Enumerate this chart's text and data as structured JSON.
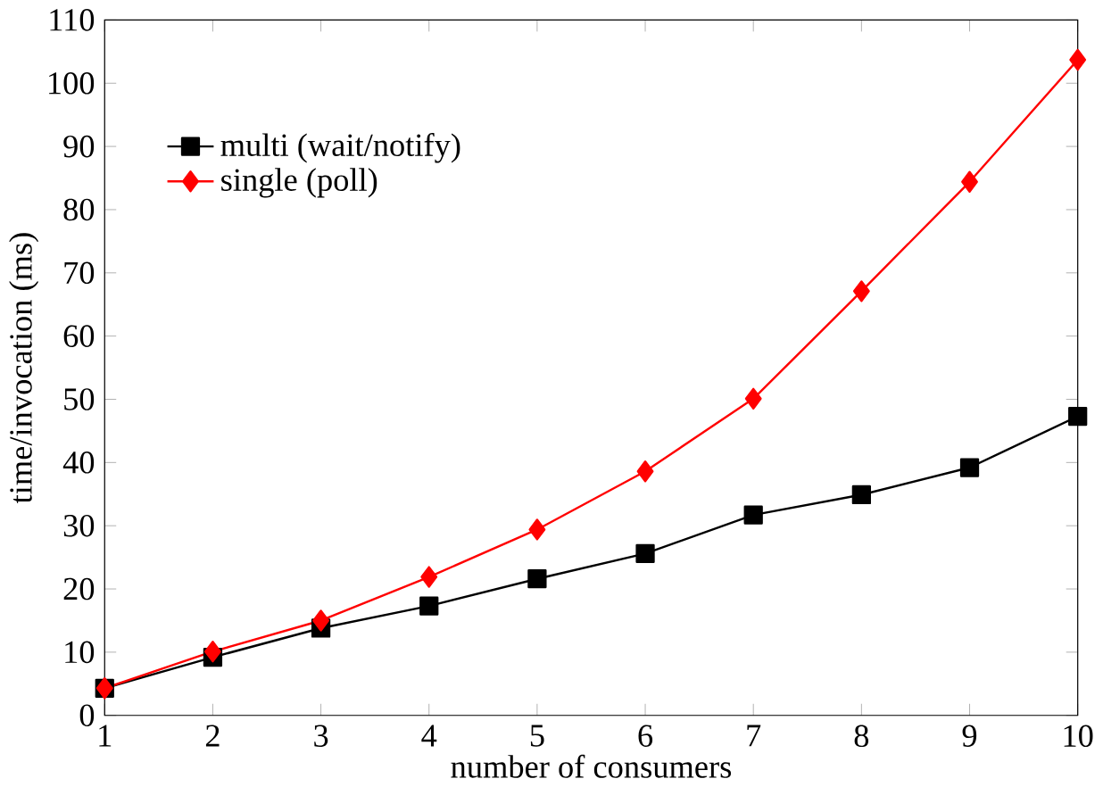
{
  "chart_data": {
    "type": "line",
    "xlabel": "number of consumers",
    "ylabel": "time/invocation (ms)",
    "x": [
      1,
      2,
      3,
      4,
      5,
      6,
      7,
      8,
      9,
      10
    ],
    "series": [
      {
        "name": "multi (wait/notify)",
        "color": "#000000",
        "marker": "square",
        "values": [
          4.3,
          9.2,
          13.8,
          17.3,
          21.6,
          25.6,
          31.7,
          34.9,
          39.2,
          47.3
        ]
      },
      {
        "name": "single (poll)",
        "color": "#ff0000",
        "marker": "diamond",
        "values": [
          4.3,
          10.1,
          15.0,
          21.9,
          29.4,
          38.6,
          50.1,
          67.1,
          84.4,
          103.7
        ]
      }
    ],
    "xlim": [
      1,
      10
    ],
    "xticks": [
      1,
      2,
      3,
      4,
      5,
      6,
      7,
      8,
      9,
      10
    ],
    "ylim": [
      0,
      110
    ],
    "yticks": [
      0,
      10,
      20,
      30,
      40,
      50,
      60,
      70,
      80,
      90,
      100,
      110
    ],
    "legend": "top left",
    "grid": false,
    "line_style": "solid"
  }
}
